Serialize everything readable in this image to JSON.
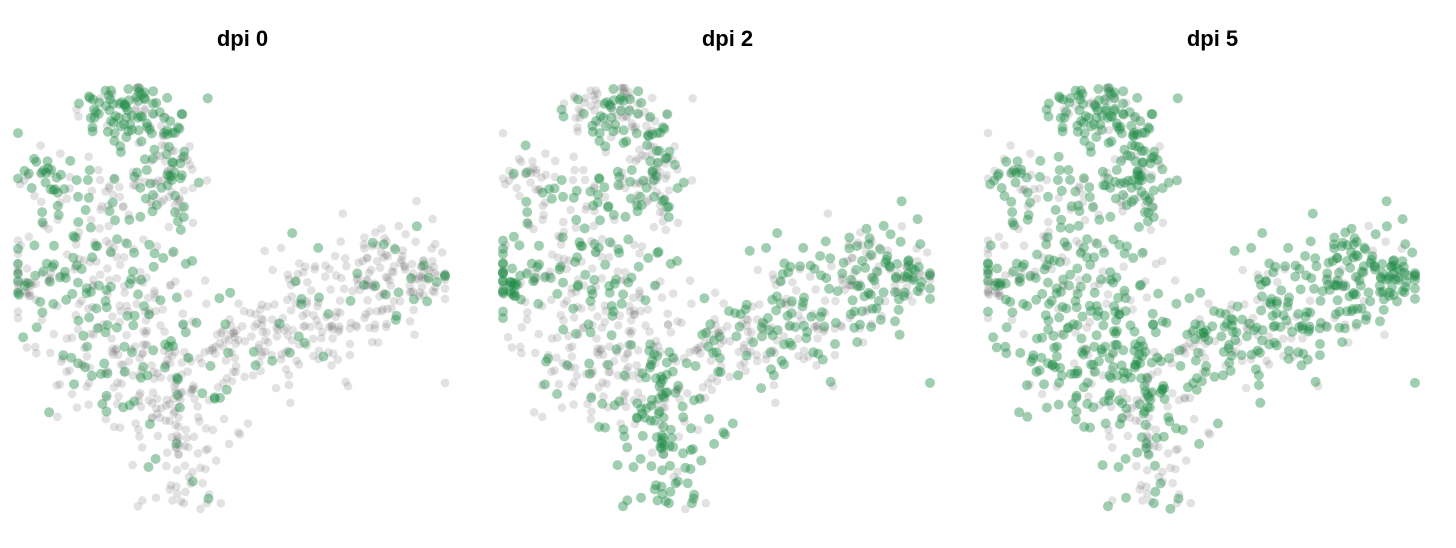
{
  "figure": {
    "panels": [
      {
        "title": "dpi 0"
      },
      {
        "title": "dpi 2"
      },
      {
        "title": "dpi 5"
      }
    ]
  },
  "colors": {
    "highlight": "#1e8a45",
    "background_points": "#555555"
  },
  "chart_data": [
    {
      "type": "scatter",
      "title": "dpi 0",
      "xlabel": "",
      "ylabel": "",
      "axes_visible": false,
      "grid": false,
      "highlight_fraction": 0.35,
      "highlight_regions": [
        "upper-left lobe top",
        "left lobe middle",
        "left tip"
      ]
    },
    {
      "type": "scatter",
      "title": "dpi 2",
      "xlabel": "",
      "ylabel": "",
      "axes_visible": false,
      "grid": false,
      "highlight_fraction": 0.45,
      "highlight_regions": [
        "bottom branch",
        "right lobe lower edge",
        "left tip"
      ]
    },
    {
      "type": "scatter",
      "title": "dpi 5",
      "xlabel": "",
      "ylabel": "",
      "axes_visible": false,
      "grid": false,
      "highlight_fraction": 0.7,
      "highlight_regions": [
        "central mass",
        "right lobe",
        "upper-left lobe"
      ]
    }
  ]
}
